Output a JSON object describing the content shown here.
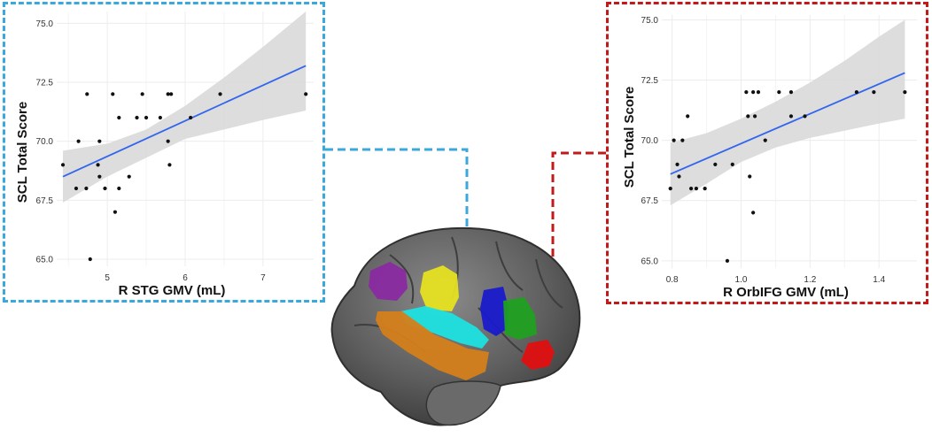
{
  "colors": {
    "left_frame": "#3aa8dc",
    "right_frame": "#c01a1a",
    "fit_line": "#3366ee",
    "ci_band": "#d9d9d9",
    "points": "#111111",
    "grid": "#ececec"
  },
  "chart_data": [
    {
      "type": "scatter",
      "title": "",
      "xlabel": "R STG GMV (mL)",
      "ylabel": "SCL Total Score",
      "xlim": [
        4.35,
        7.65
      ],
      "ylim": [
        64.7,
        75.5
      ],
      "x_ticks": [
        "5",
        "6",
        "7"
      ],
      "x_tick_values": [
        5,
        6,
        7
      ],
      "y_ticks": [
        "65.0",
        "67.5",
        "70.0",
        "72.5",
        "75.0"
      ],
      "y_tick_values": [
        65.0,
        67.5,
        70.0,
        72.5,
        75.0
      ],
      "grid": true,
      "points": [
        [
          4.43,
          69.0
        ],
        [
          4.6,
          68.0
        ],
        [
          4.63,
          70.0
        ],
        [
          4.73,
          68.0
        ],
        [
          4.74,
          72.0
        ],
        [
          4.78,
          65.0
        ],
        [
          4.88,
          69.0
        ],
        [
          4.9,
          70.0
        ],
        [
          4.9,
          68.5
        ],
        [
          4.97,
          68.0
        ],
        [
          5.07,
          72.0
        ],
        [
          5.1,
          67.0
        ],
        [
          5.15,
          71.0
        ],
        [
          5.15,
          68.0
        ],
        [
          5.28,
          68.5
        ],
        [
          5.38,
          71.0
        ],
        [
          5.45,
          72.0
        ],
        [
          5.5,
          71.0
        ],
        [
          5.68,
          71.0
        ],
        [
          5.78,
          70.0
        ],
        [
          5.78,
          72.0
        ],
        [
          5.8,
          69.0
        ],
        [
          5.82,
          72.0
        ],
        [
          6.07,
          71.0
        ],
        [
          6.45,
          72.0
        ],
        [
          7.55,
          72.0
        ]
      ],
      "fit_line": {
        "x": [
          4.43,
          7.55
        ],
        "y": [
          68.5,
          73.2
        ]
      },
      "ci_band": {
        "x": [
          4.43,
          5.0,
          5.5,
          6.0,
          6.5,
          7.0,
          7.55
        ],
        "upper": [
          69.6,
          69.9,
          70.5,
          71.5,
          72.7,
          74.0,
          75.5
        ],
        "lower": [
          67.4,
          68.5,
          69.3,
          70.1,
          70.5,
          70.9,
          71.3
        ]
      }
    },
    {
      "type": "scatter",
      "title": "",
      "xlabel": "R OrbIFG GMV (mL)",
      "ylabel": "SCL Total Score",
      "xlim": [
        0.77,
        1.51
      ],
      "ylim": [
        64.7,
        75.2
      ],
      "x_ticks": [
        "0.8",
        "1.0",
        "1.2",
        "1.4"
      ],
      "x_tick_values": [
        0.8,
        1.0,
        1.2,
        1.4
      ],
      "y_ticks": [
        "65.0",
        "67.5",
        "70.0",
        "72.5",
        "75.0"
      ],
      "y_tick_values": [
        65.0,
        67.5,
        70.0,
        72.5,
        75.0
      ],
      "grid": true,
      "points": [
        [
          0.795,
          68.0
        ],
        [
          0.805,
          70.0
        ],
        [
          0.815,
          69.0
        ],
        [
          0.82,
          68.5
        ],
        [
          0.83,
          70.0
        ],
        [
          0.845,
          71.0
        ],
        [
          0.855,
          68.0
        ],
        [
          0.87,
          68.0
        ],
        [
          0.895,
          68.0
        ],
        [
          0.925,
          69.0
        ],
        [
          0.96,
          65.0
        ],
        [
          0.975,
          69.0
        ],
        [
          1.015,
          72.0
        ],
        [
          1.02,
          71.0
        ],
        [
          1.025,
          68.5
        ],
        [
          1.035,
          72.0
        ],
        [
          1.04,
          71.0
        ],
        [
          1.05,
          72.0
        ],
        [
          1.035,
          67.0
        ],
        [
          1.07,
          70.0
        ],
        [
          1.11,
          72.0
        ],
        [
          1.145,
          72.0
        ],
        [
          1.145,
          71.0
        ],
        [
          1.185,
          71.0
        ],
        [
          1.335,
          72.0
        ],
        [
          1.385,
          72.0
        ],
        [
          1.475,
          72.0
        ]
      ],
      "fit_line": {
        "x": [
          0.795,
          1.475
        ],
        "y": [
          68.6,
          72.8
        ]
      },
      "ci_band": {
        "x": [
          0.795,
          0.9,
          1.0,
          1.1,
          1.2,
          1.3,
          1.4,
          1.475
        ],
        "upper": [
          69.9,
          70.3,
          70.9,
          71.6,
          72.4,
          73.3,
          74.3,
          75.0
        ],
        "lower": [
          67.3,
          68.2,
          69.1,
          69.7,
          70.1,
          70.4,
          70.7,
          70.9
        ]
      }
    }
  ]
}
